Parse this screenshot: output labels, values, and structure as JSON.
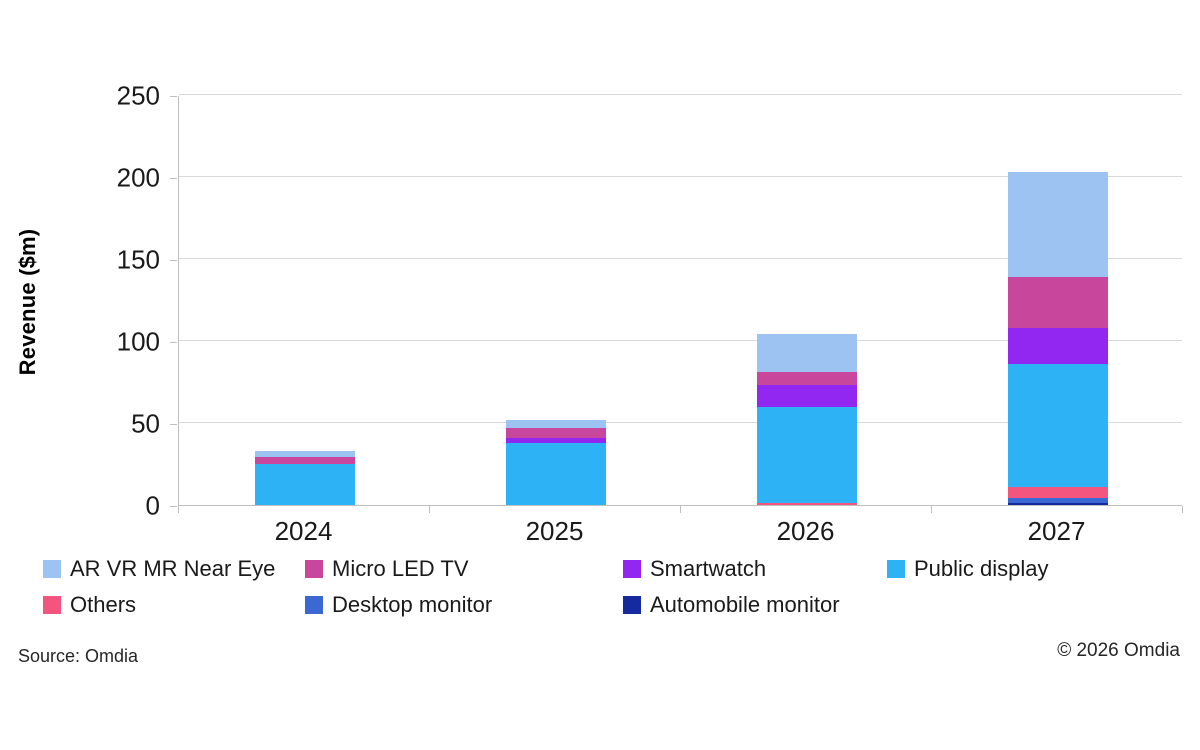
{
  "chart_data": {
    "type": "bar",
    "stacked": true,
    "title": "",
    "ylabel": "Revenue ($m)",
    "xlabel": "",
    "ylim": [
      0,
      250
    ],
    "yticks": [
      0,
      50,
      100,
      150,
      200,
      250
    ],
    "grid": "horizontal",
    "legend_position": "bottom",
    "categories": [
      "2024",
      "2025",
      "2026",
      "2027"
    ],
    "series": [
      {
        "name": "Automobile monitor",
        "color": "#152a9e",
        "values": [
          0,
          0,
          0,
          1
        ]
      },
      {
        "name": "Desktop monitor",
        "color": "#3c68d4",
        "values": [
          0,
          0,
          0,
          3
        ]
      },
      {
        "name": "Others",
        "color": "#f4557f",
        "values": [
          0,
          0,
          1,
          7
        ]
      },
      {
        "name": "Public display",
        "color": "#2db2f5",
        "values": [
          25,
          38,
          59,
          75
        ]
      },
      {
        "name": "Smartwatch",
        "color": "#9127f0",
        "values": [
          0,
          3,
          13,
          22
        ]
      },
      {
        "name": "Micro LED TV",
        "color": "#c8469b",
        "values": [
          4,
          6,
          8,
          31
        ]
      },
      {
        "name": "AR VR MR Near Eye",
        "color": "#9dc3f2",
        "values": [
          4,
          5,
          23,
          64
        ]
      }
    ],
    "legend_order": [
      "AR VR MR Near Eye",
      "Micro LED TV",
      "Smartwatch",
      "Public display",
      "Others",
      "Desktop monitor",
      "Automobile monitor"
    ]
  },
  "footer": {
    "source": "Source: Omdia",
    "copyright": "© 2026 Omdia"
  }
}
